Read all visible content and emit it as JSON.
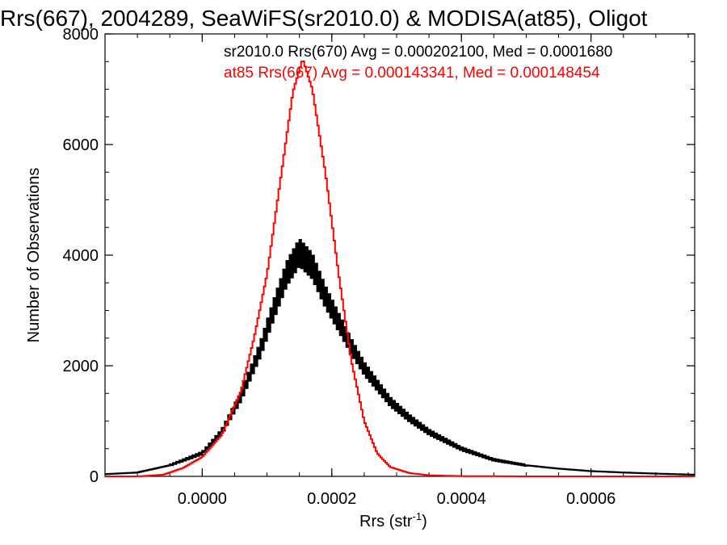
{
  "chart_data": {
    "type": "line",
    "title": "Rrs(667), 2004289, SeaWiFS(sr2010.0) & MODISA(at85), Oligot",
    "xlabel_main": "Rrs (str",
    "xlabel_sup": "-1",
    "xlabel_tail": ")",
    "ylabel": "Number of Observations",
    "xlim": [
      -0.00015,
      0.00076
    ],
    "ylim": [
      0,
      8000
    ],
    "x_ticks": [
      0.0,
      0.0002,
      0.0004,
      0.0006
    ],
    "x_tick_labels": [
      "0.0000",
      "0.0002",
      "0.0004",
      "0.0006"
    ],
    "y_ticks": [
      0,
      2000,
      4000,
      6000,
      8000
    ],
    "y_tick_labels": [
      "0",
      "2000",
      "4000",
      "6000",
      "8000"
    ],
    "grid": false,
    "legend_placement": "top-right",
    "series": [
      {
        "name": "sr2010.0 Rrs(670) Avg = 0.000202100, Med = 0.0001680",
        "color": "#000000",
        "points": [
          [
            -0.00015,
            40
          ],
          [
            -0.0001,
            70
          ],
          [
            -5e-05,
            200
          ],
          [
            0.0,
            420
          ],
          [
            3e-05,
            800
          ],
          [
            6e-05,
            1450
          ],
          [
            9e-05,
            2300
          ],
          [
            0.00011,
            3000
          ],
          [
            0.00013,
            3650
          ],
          [
            0.00015,
            4050
          ],
          [
            0.00017,
            3800
          ],
          [
            0.00019,
            3250
          ],
          [
            0.00021,
            2800
          ],
          [
            0.00023,
            2350
          ],
          [
            0.00025,
            1950
          ],
          [
            0.00027,
            1650
          ],
          [
            0.00029,
            1350
          ],
          [
            0.00032,
            1050
          ],
          [
            0.00035,
            800
          ],
          [
            0.0004,
            500
          ],
          [
            0.00045,
            300
          ],
          [
            0.0005,
            200
          ],
          [
            0.00055,
            140
          ],
          [
            0.0006,
            95
          ],
          [
            0.00065,
            70
          ],
          [
            0.0007,
            50
          ],
          [
            0.00076,
            30
          ]
        ]
      },
      {
        "name": "at85 Rrs(667) Avg = 0.000143341, Med = 0.000148454",
        "color": "#ff0000",
        "points": [
          [
            -0.00015,
            0
          ],
          [
            -0.0001,
            0
          ],
          [
            -6e-05,
            30
          ],
          [
            -3e-05,
            150
          ],
          [
            0.0,
            350
          ],
          [
            3e-05,
            750
          ],
          [
            6e-05,
            1550
          ],
          [
            8e-05,
            2500
          ],
          [
            0.0001,
            3650
          ],
          [
            0.00012,
            5300
          ],
          [
            0.00014,
            6950
          ],
          [
            0.000155,
            7550
          ],
          [
            0.00017,
            7000
          ],
          [
            0.00019,
            5500
          ],
          [
            0.00021,
            3700
          ],
          [
            0.00023,
            2100
          ],
          [
            0.00025,
            1000
          ],
          [
            0.00027,
            420
          ],
          [
            0.00029,
            170
          ],
          [
            0.00032,
            60
          ],
          [
            0.00035,
            20
          ],
          [
            0.0004,
            5
          ],
          [
            0.0005,
            0
          ],
          [
            0.00076,
            0
          ]
        ]
      }
    ]
  }
}
